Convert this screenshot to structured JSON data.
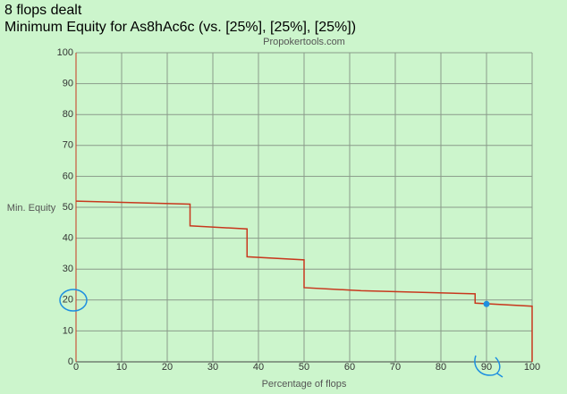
{
  "chart_data": {
    "type": "line",
    "title": "8 flops dealt",
    "subtitle": "Minimum Equity for As8hAc6c (vs. [25%], [25%], [25%])",
    "source": "Propokertools.com",
    "x_label": "Percentage of flops",
    "y_label": "Min. Equity",
    "x": [
      0,
      25,
      25,
      37.5,
      37.5,
      50,
      50,
      62.5,
      87.5,
      87.5,
      100,
      100
    ],
    "values": [
      52,
      51,
      44,
      43,
      34,
      33,
      24,
      23,
      22,
      19,
      18,
      0
    ],
    "color": "#c8381e",
    "highlight": {
      "x": 90,
      "y": 18.7,
      "color": "#1e8fe0"
    },
    "xlim": [
      0,
      100
    ],
    "xticks": [
      0,
      10,
      20,
      30,
      40,
      50,
      60,
      70,
      80,
      90,
      100
    ],
    "ylim": [
      0,
      100
    ],
    "yticks": [
      0,
      10,
      20,
      30,
      40,
      50,
      60,
      70,
      80,
      90,
      100
    ],
    "grid": true
  }
}
